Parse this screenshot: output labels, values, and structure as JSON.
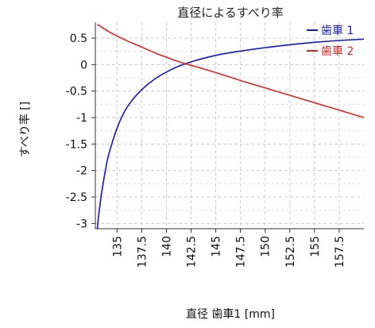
{
  "chart_data": {
    "type": "line",
    "title": "直径によるすべり率",
    "xlabel": "直径 歯車1 [mm]",
    "ylabel": "すべり率 []",
    "xlim": [
      132.8,
      160.0
    ],
    "ylim": [
      -3.1,
      0.8
    ],
    "grid": true,
    "legend_position": "top-right",
    "x_ticks": [
      135,
      137.5,
      140,
      142.5,
      145,
      147.5,
      150,
      152.5,
      155,
      157.5
    ],
    "x_tick_labels": [
      "135",
      "137.5",
      "140",
      "142.5",
      "145",
      "147.5",
      "150",
      "152.5",
      "155",
      "157.5"
    ],
    "y_ticks": [
      0.5,
      0,
      -0.5,
      -1,
      -1.5,
      -2,
      -2.5,
      -3
    ],
    "y_tick_labels": [
      "0.5",
      "0",
      "-0.5",
      "-1",
      "-1.5",
      "-2",
      "-2.5",
      "-3"
    ],
    "series": [
      {
        "name": "歯車 1",
        "color": "#1515c8",
        "x": [
          133.0,
          133.2,
          133.5,
          134.0,
          134.5,
          135.0,
          135.5,
          136.0,
          137.0,
          138.0,
          139.0,
          140.0,
          141.0,
          142.0,
          143.0,
          144.0,
          145.0,
          146.0,
          147.5,
          149.0,
          150.0,
          152.5,
          155.0,
          157.5,
          160.0
        ],
        "y": [
          -3.1,
          -2.75,
          -2.35,
          -1.82,
          -1.48,
          -1.2,
          -0.98,
          -0.81,
          -0.57,
          -0.39,
          -0.25,
          -0.14,
          -0.05,
          0.02,
          0.08,
          0.13,
          0.175,
          0.21,
          0.255,
          0.295,
          0.32,
          0.375,
          0.42,
          0.455,
          0.48
        ]
      },
      {
        "name": "歯車 2",
        "color": "#dd2222",
        "x": [
          133.0,
          134.0,
          135.0,
          136.0,
          137.0,
          138.0,
          139.0,
          140.0,
          141.0,
          142.0,
          143.0,
          145.0,
          147.5,
          150.0,
          152.5,
          155.0,
          157.5,
          160.0
        ],
        "y": [
          0.76,
          0.64,
          0.54,
          0.45,
          0.37,
          0.29,
          0.21,
          0.14,
          0.07,
          0.01,
          -0.04,
          -0.15,
          -0.3,
          -0.44,
          -0.58,
          -0.72,
          -0.86,
          -1.0
        ]
      }
    ]
  }
}
